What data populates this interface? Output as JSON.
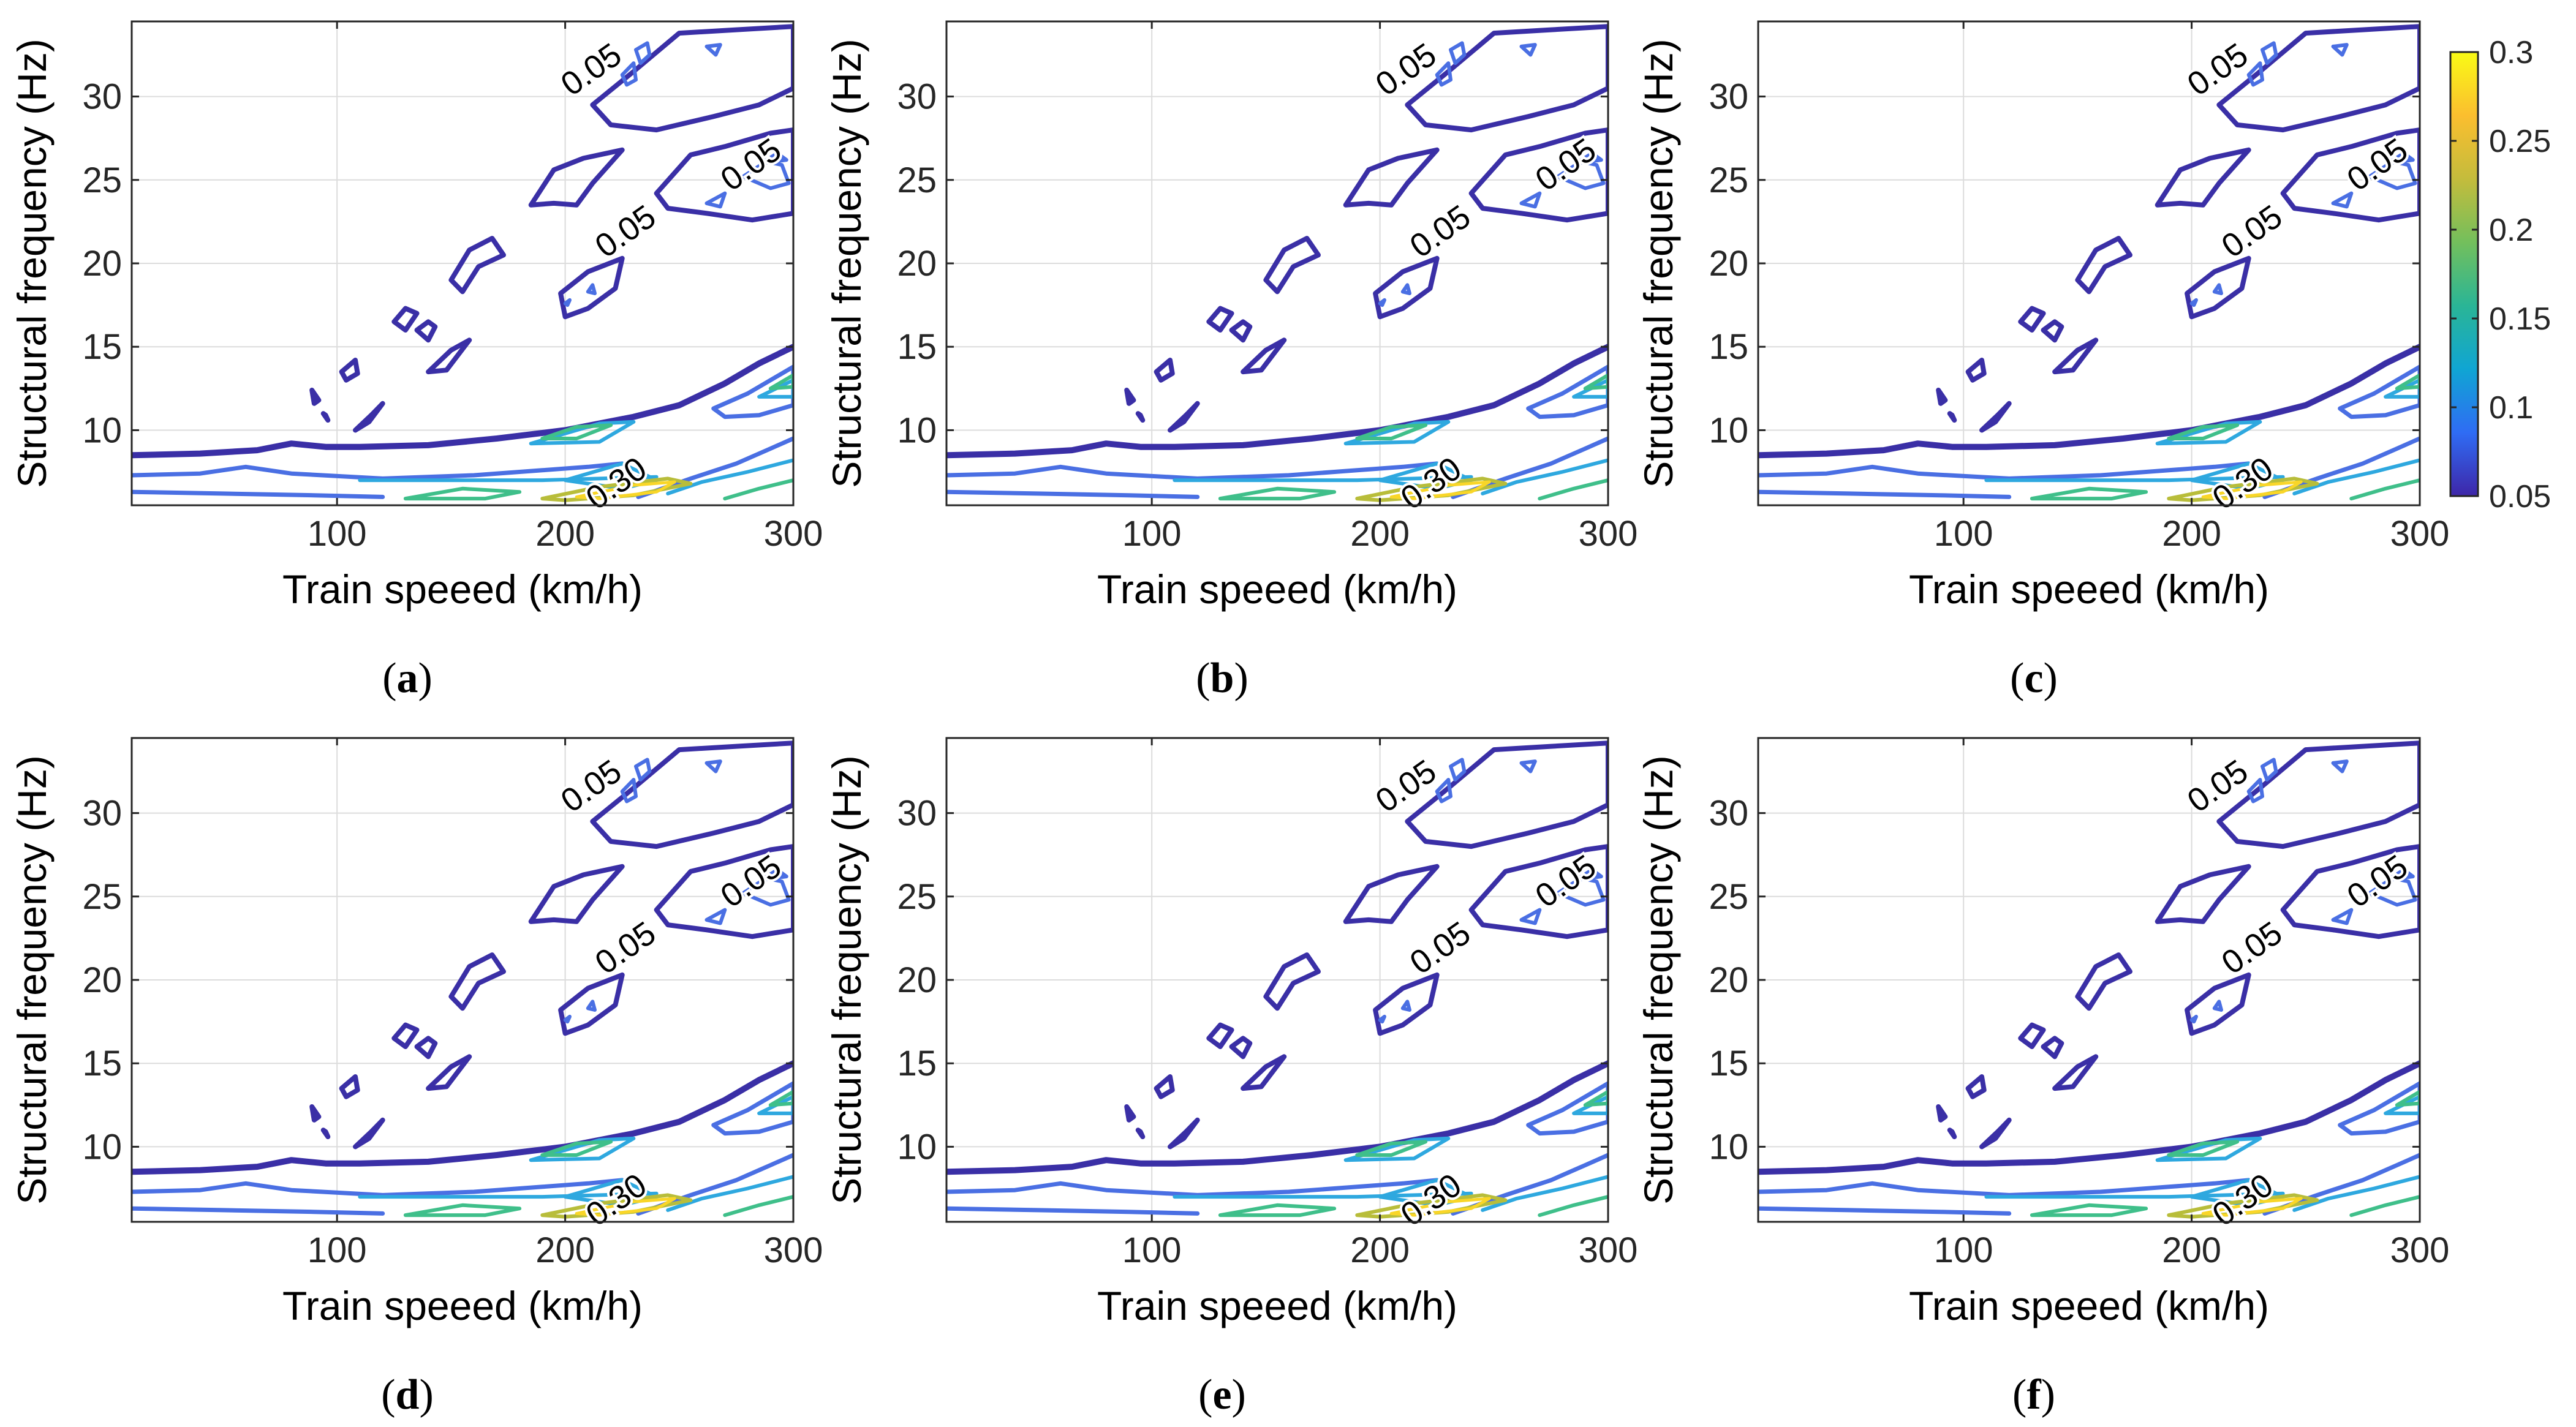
{
  "chart_data": [
    {
      "panel": "a",
      "type": "contour",
      "caption_open": "(",
      "caption_letter": "a",
      "caption_close": ")",
      "xlabel": "Train speeed (km/h)",
      "ylabel": "Structural frequency (Hz)",
      "xlim": [
        10,
        300
      ],
      "ylim": [
        5.5,
        34.5
      ],
      "xticks": [
        100,
        200,
        300
      ],
      "yticks": [
        10,
        15,
        20,
        25,
        30
      ],
      "grid": true,
      "contour_labels": [
        {
          "text": "0.05",
          "x": 212,
          "y": 31.5
        },
        {
          "text": "0.05",
          "x": 282,
          "y": 25.8
        },
        {
          "text": "0.05",
          "x": 227,
          "y": 21.8
        },
        {
          "text": "0.30",
          "x": 223,
          "y": 6.7
        }
      ]
    },
    {
      "panel": "b",
      "type": "contour",
      "caption_open": "(",
      "caption_letter": "b",
      "caption_close": ")",
      "xlabel": "Train speeed (km/h)",
      "ylabel": "Structural frequency (Hz)",
      "xlim": [
        10,
        300
      ],
      "ylim": [
        5.5,
        34.5
      ],
      "xticks": [
        100,
        200,
        300
      ],
      "yticks": [
        10,
        15,
        20,
        25,
        30
      ],
      "grid": true,
      "contour_labels": [
        {
          "text": "0.05",
          "x": 212,
          "y": 31.5
        },
        {
          "text": "0.05",
          "x": 282,
          "y": 25.8
        },
        {
          "text": "0.05",
          "x": 227,
          "y": 21.8
        },
        {
          "text": "0.30",
          "x": 223,
          "y": 6.7
        }
      ]
    },
    {
      "panel": "c",
      "type": "contour",
      "caption_open": "(",
      "caption_letter": "c",
      "caption_close": ")",
      "xlabel": "Train speeed (km/h)",
      "ylabel": "Structural frequency (Hz)",
      "xlim": [
        10,
        300
      ],
      "ylim": [
        5.5,
        34.5
      ],
      "xticks": [
        100,
        200,
        300
      ],
      "yticks": [
        10,
        15,
        20,
        25,
        30
      ],
      "grid": true,
      "contour_labels": [
        {
          "text": "0.05",
          "x": 212,
          "y": 31.5
        },
        {
          "text": "0.05",
          "x": 282,
          "y": 25.8
        },
        {
          "text": "0.05",
          "x": 227,
          "y": 21.8
        },
        {
          "text": "0.30",
          "x": 223,
          "y": 6.7
        }
      ]
    },
    {
      "panel": "d",
      "type": "contour",
      "caption_open": "(",
      "caption_letter": "d",
      "caption_close": ")",
      "xlabel": "Train speeed (km/h)",
      "ylabel": "Structural frequency (Hz)",
      "xlim": [
        10,
        300
      ],
      "ylim": [
        5.5,
        34.5
      ],
      "xticks": [
        100,
        200,
        300
      ],
      "yticks": [
        10,
        15,
        20,
        25,
        30
      ],
      "grid": true,
      "contour_labels": [
        {
          "text": "0.05",
          "x": 212,
          "y": 31.5
        },
        {
          "text": "0.05",
          "x": 282,
          "y": 25.8
        },
        {
          "text": "0.05",
          "x": 227,
          "y": 21.8
        },
        {
          "text": "0.30",
          "x": 223,
          "y": 6.7
        }
      ]
    },
    {
      "panel": "e",
      "type": "contour",
      "caption_open": "(",
      "caption_letter": "e",
      "caption_close": ")",
      "xlabel": "Train speeed (km/h)",
      "ylabel": "Structural frequency (Hz)",
      "xlim": [
        10,
        300
      ],
      "ylim": [
        5.5,
        34.5
      ],
      "xticks": [
        100,
        200,
        300
      ],
      "yticks": [
        10,
        15,
        20,
        25,
        30
      ],
      "grid": true,
      "contour_labels": [
        {
          "text": "0.05",
          "x": 212,
          "y": 31.5
        },
        {
          "text": "0.05",
          "x": 282,
          "y": 25.8
        },
        {
          "text": "0.05",
          "x": 227,
          "y": 21.8
        },
        {
          "text": "0.30",
          "x": 223,
          "y": 6.7
        }
      ]
    },
    {
      "panel": "f",
      "type": "contour",
      "caption_open": "(",
      "caption_letter": "f",
      "caption_close": ")",
      "xlabel": "Train speeed (km/h)",
      "ylabel": "Structural frequency (Hz)",
      "xlim": [
        10,
        300
      ],
      "ylim": [
        5.5,
        34.5
      ],
      "xticks": [
        100,
        200,
        300
      ],
      "yticks": [
        10,
        15,
        20,
        25,
        30
      ],
      "grid": true,
      "contour_labels": [
        {
          "text": "0.05",
          "x": 212,
          "y": 31.5
        },
        {
          "text": "0.05",
          "x": 282,
          "y": 25.8
        },
        {
          "text": "0.05",
          "x": 227,
          "y": 21.8
        },
        {
          "text": "0.30",
          "x": 223,
          "y": 6.7
        }
      ]
    }
  ],
  "colorbar": {
    "min": 0.05,
    "max": 0.3,
    "tick_values": [
      0.3,
      0.25,
      0.2,
      0.15,
      0.1,
      0.05
    ],
    "tick_labels": [
      "0.3",
      "0.25",
      "0.2",
      "0.15",
      "0.1",
      "0.05"
    ],
    "colors": [
      "#3e26a8",
      "#2f6cf4",
      "#10a5d3",
      "#2ab596",
      "#73bf5c",
      "#c4bc3c",
      "#fbbe2f",
      "#f9fb15"
    ]
  },
  "contour_colors": {
    "0.05": "#3a2fa6",
    "0.1": "#4a6fe3",
    "0.15": "#2ea8df",
    "0.2": "#3fbf8a",
    "0.25": "#b8bd3a",
    "0.3": "#f9d628"
  },
  "grid_color": "#dcdcdc",
  "axis_color": "#262626"
}
